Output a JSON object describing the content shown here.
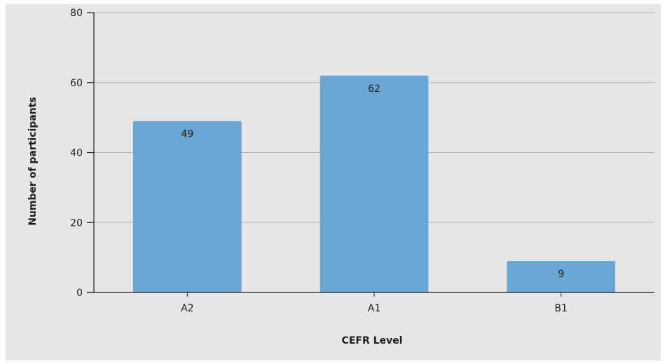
{
  "chart_data": {
    "type": "bar",
    "categories": [
      "A2",
      "A1",
      "B1"
    ],
    "values": [
      49,
      62,
      9
    ],
    "data_labels": [
      "49",
      "62",
      "9"
    ],
    "title": "",
    "xlabel": "CEFR Level",
    "ylabel": "Number of participants",
    "ylim": [
      0,
      80
    ],
    "yticks": [
      "0",
      "20",
      "40",
      "60",
      "80"
    ],
    "grid": true,
    "legend": "none",
    "colors": {
      "bar": "#6aa6d3",
      "background": "#e6e6e6",
      "grid": "#b3b3b3",
      "axis": "#1f1f1f"
    }
  }
}
